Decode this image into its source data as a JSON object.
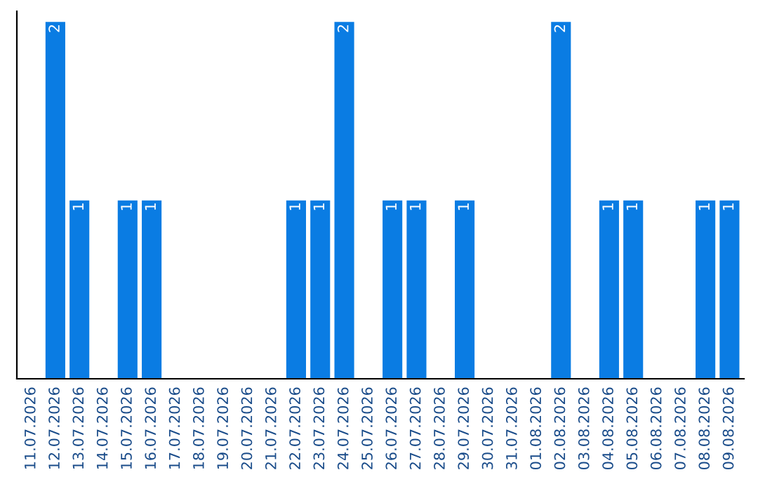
{
  "chart_data": {
    "type": "bar",
    "categories": [
      "11.07.2026",
      "12.07.2026",
      "13.07.2026",
      "14.07.2026",
      "15.07.2026",
      "16.07.2026",
      "17.07.2026",
      "18.07.2026",
      "19.07.2026",
      "20.07.2026",
      "21.07.2026",
      "22.07.2026",
      "23.07.2026",
      "24.07.2026",
      "25.07.2026",
      "26.07.2026",
      "27.07.2026",
      "28.07.2026",
      "29.07.2026",
      "30.07.2026",
      "31.07.2026",
      "01.08.2026",
      "02.08.2026",
      "03.08.2026",
      "04.08.2026",
      "05.08.2026",
      "06.08.2026",
      "07.08.2026",
      "08.08.2026",
      "09.08.2026"
    ],
    "values": [
      0,
      2,
      1,
      0,
      1,
      1,
      0,
      0,
      0,
      0,
      0,
      1,
      1,
      2,
      0,
      1,
      1,
      0,
      1,
      0,
      0,
      0,
      2,
      0,
      1,
      1,
      0,
      0,
      1,
      1
    ],
    "value_labels": [
      null,
      "2",
      "1",
      null,
      "1",
      "1",
      null,
      null,
      null,
      null,
      null,
      "1",
      "1",
      "2",
      null,
      "1",
      "1",
      null,
      "1",
      null,
      null,
      null,
      "2",
      null,
      "1",
      "1",
      null,
      null,
      "1",
      "1"
    ],
    "color": "#0a7ce3",
    "grid": false,
    "legend": false
  }
}
